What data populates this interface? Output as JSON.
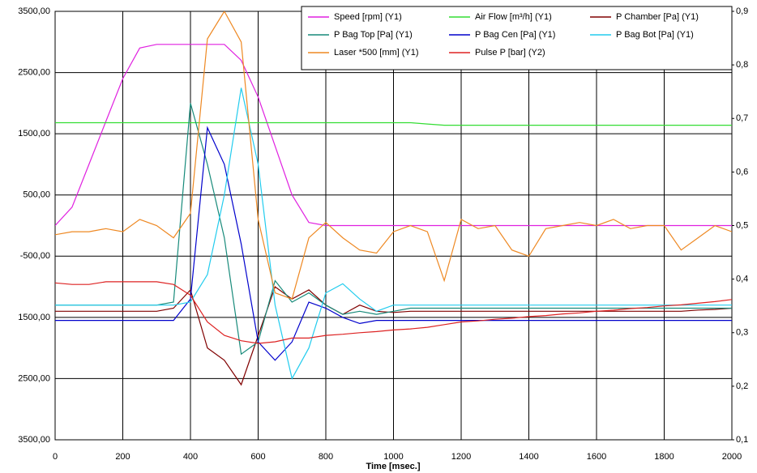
{
  "chart_data": {
    "type": "line",
    "x_label": "Time [msec.]",
    "x": [
      0,
      50,
      100,
      150,
      200,
      250,
      300,
      350,
      400,
      450,
      500,
      550,
      600,
      650,
      700,
      750,
      800,
      850,
      900,
      950,
      1000,
      1050,
      1100,
      1150,
      1200,
      1250,
      1300,
      1350,
      1400,
      1450,
      1500,
      1550,
      1600,
      1650,
      1700,
      1750,
      1800,
      1850,
      1900,
      1950,
      2000
    ],
    "xlim": [
      0,
      2000
    ],
    "xticks": [
      0,
      200,
      400,
      600,
      800,
      1000,
      1200,
      1400,
      1600,
      1800,
      2000
    ],
    "ylim": [
      -3500,
      3500
    ],
    "yticks": [
      {
        "value": 3500,
        "label": "3500,00"
      },
      {
        "value": 2500,
        "label": "2500,00"
      },
      {
        "value": 1500,
        "label": "1500,00"
      },
      {
        "value": 500,
        "label": "500,00"
      },
      {
        "value": -500,
        "label": "-500,00"
      },
      {
        "value": -1500,
        "label": "1500,00"
      },
      {
        "value": -2500,
        "label": "2500,00"
      },
      {
        "value": -3500,
        "label": "3500,00"
      }
    ],
    "y2lim": [
      0.1,
      0.9
    ],
    "y2ticks": [
      {
        "value": 0.9,
        "label": "0,9"
      },
      {
        "value": 0.8,
        "label": "0,8"
      },
      {
        "value": 0.7,
        "label": "0,7"
      },
      {
        "value": 0.6,
        "label": "0,6"
      },
      {
        "value": 0.5,
        "label": "0,5"
      },
      {
        "value": 0.4,
        "label": "0,4"
      },
      {
        "value": 0.3,
        "label": "0,3"
      },
      {
        "value": 0.2,
        "label": "0,2"
      },
      {
        "value": 0.1,
        "label": "0,1"
      }
    ],
    "grid": true,
    "legend": "top-right",
    "series": [
      {
        "name": "Speed [rpm] (Y1)",
        "color": "#e020e0",
        "values": [
          0,
          300,
          1000,
          1700,
          2400,
          2900,
          2960,
          2960,
          2960,
          2960,
          2960,
          2700,
          2100,
          1300,
          500,
          50,
          0,
          0,
          0,
          0,
          0,
          0,
          0,
          0,
          0,
          0,
          0,
          0,
          0,
          0,
          0,
          0,
          0,
          0,
          0,
          0,
          0,
          0,
          0,
          0,
          0
        ]
      },
      {
        "name": "Air Flow [m³/h] (Y1)",
        "color": "#33dd33",
        "values": [
          1680,
          1680,
          1680,
          1680,
          1680,
          1680,
          1680,
          1680,
          1680,
          1680,
          1680,
          1680,
          1680,
          1680,
          1680,
          1680,
          1680,
          1680,
          1680,
          1680,
          1680,
          1680,
          1660,
          1640,
          1640,
          1640,
          1640,
          1640,
          1640,
          1640,
          1640,
          1640,
          1640,
          1640,
          1640,
          1640,
          1640,
          1640,
          1640,
          1640,
          1640
        ]
      },
      {
        "name": "P Chamber [Pa] (Y1)",
        "color": "#800000",
        "values": [
          -1400,
          -1400,
          -1400,
          -1400,
          -1400,
          -1400,
          -1400,
          -1350,
          -1050,
          -2000,
          -2200,
          -2600,
          -1800,
          -1000,
          -1200,
          -1050,
          -1300,
          -1450,
          -1300,
          -1400,
          -1420,
          -1400,
          -1400,
          -1400,
          -1400,
          -1400,
          -1400,
          -1400,
          -1400,
          -1400,
          -1400,
          -1400,
          -1400,
          -1400,
          -1400,
          -1400,
          -1400,
          -1400,
          -1380,
          -1370,
          -1350
        ]
      },
      {
        "name": "P Bag Top  [Pa] (Y1)",
        "color": "#178a7a",
        "values": [
          -1300,
          -1300,
          -1300,
          -1300,
          -1300,
          -1300,
          -1300,
          -1250,
          2000,
          1000,
          -200,
          -2100,
          -1900,
          -900,
          -1250,
          -1100,
          -1300,
          -1450,
          -1400,
          -1450,
          -1400,
          -1350,
          -1350,
          -1350,
          -1350,
          -1350,
          -1350,
          -1350,
          -1350,
          -1350,
          -1350,
          -1350,
          -1350,
          -1350,
          -1350,
          -1350,
          -1350,
          -1350,
          -1350,
          -1350,
          -1350
        ]
      },
      {
        "name": "P Bag Cen  [Pa] (Y1)",
        "color": "#0000cc",
        "values": [
          -1550,
          -1550,
          -1550,
          -1550,
          -1550,
          -1550,
          -1550,
          -1550,
          -1200,
          1600,
          1000,
          -300,
          -1900,
          -2200,
          -1900,
          -1250,
          -1350,
          -1500,
          -1600,
          -1550,
          -1550,
          -1550,
          -1550,
          -1550,
          -1550,
          -1550,
          -1550,
          -1550,
          -1550,
          -1550,
          -1550,
          -1550,
          -1550,
          -1550,
          -1550,
          -1550,
          -1550,
          -1550,
          -1550,
          -1550,
          -1550
        ]
      },
      {
        "name": "P Bag Bot  [Pa] (Y1)",
        "color": "#22ccee",
        "values": [
          -1300,
          -1300,
          -1300,
          -1300,
          -1300,
          -1300,
          -1300,
          -1300,
          -1250,
          -800,
          500,
          2250,
          1000,
          -1300,
          -2500,
          -2000,
          -1100,
          -950,
          -1200,
          -1400,
          -1300,
          -1300,
          -1300,
          -1300,
          -1300,
          -1300,
          -1300,
          -1300,
          -1300,
          -1300,
          -1300,
          -1300,
          -1300,
          -1300,
          -1300,
          -1300,
          -1300,
          -1300,
          -1300,
          -1300,
          -1300
        ]
      },
      {
        "name": "Laser *500 [mm] (Y1)",
        "color": "#ee8822",
        "values": [
          -150,
          -100,
          -100,
          -50,
          -100,
          100,
          0,
          -200,
          200,
          3050,
          3500,
          3000,
          100,
          -1100,
          -1200,
          -200,
          50,
          -200,
          -400,
          -450,
          -100,
          0,
          -100,
          -900,
          100,
          -50,
          0,
          -400,
          -500,
          -50,
          0,
          50,
          0,
          100,
          -50,
          0,
          0,
          -400,
          -200,
          0,
          -100
        ]
      },
      {
        "name": "Pulse P [bar] (Y2)",
        "color": "#dd2222",
        "axis": "y2",
        "values": [
          0.393,
          0.39,
          0.39,
          0.395,
          0.395,
          0.395,
          0.395,
          0.39,
          0.37,
          0.32,
          0.295,
          0.285,
          0.28,
          0.283,
          0.29,
          0.29,
          0.295,
          0.297,
          0.3,
          0.302,
          0.305,
          0.307,
          0.31,
          0.315,
          0.32,
          0.322,
          0.325,
          0.327,
          0.33,
          0.332,
          0.335,
          0.337,
          0.34,
          0.342,
          0.345,
          0.347,
          0.35,
          0.352,
          0.355,
          0.358,
          0.362
        ]
      }
    ]
  }
}
